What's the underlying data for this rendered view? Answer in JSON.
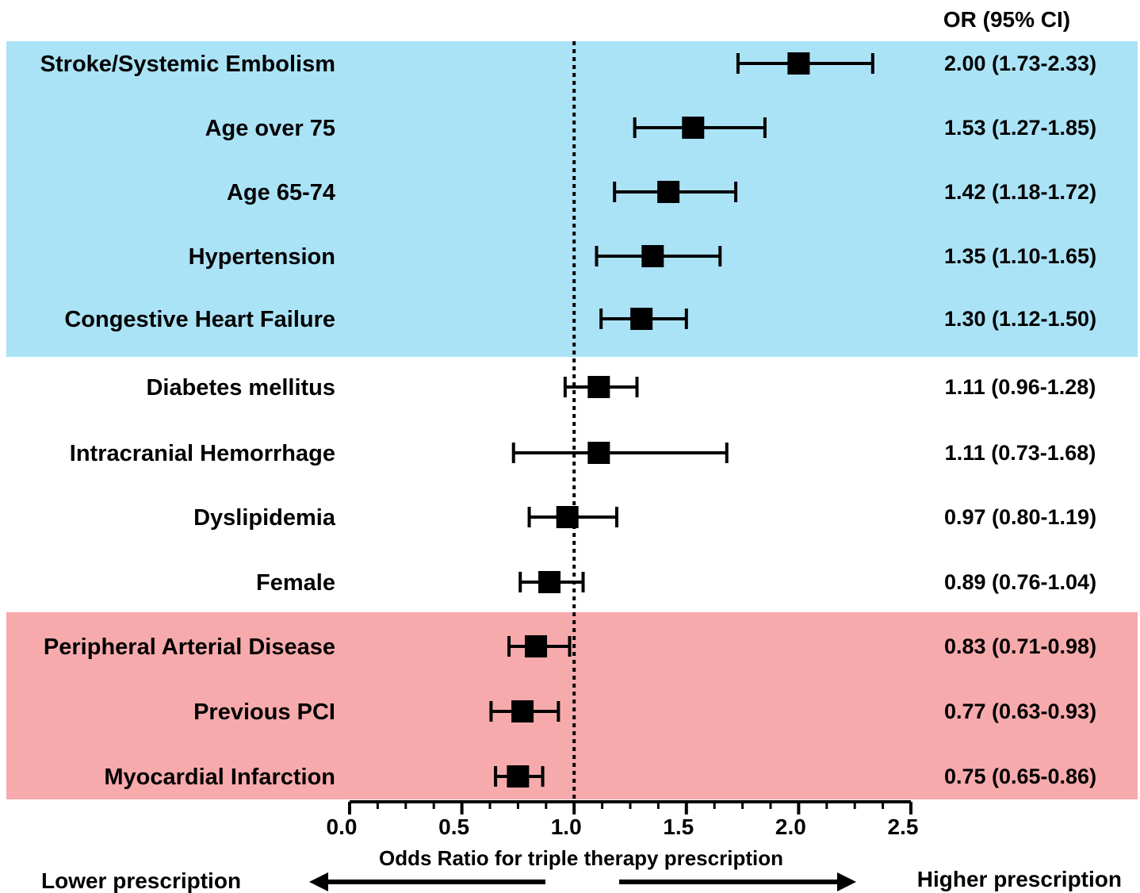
{
  "chart_data": {
    "type": "forest",
    "xlabel": "Odds Ratio for triple therapy prescription",
    "xlim": [
      0,
      2.5
    ],
    "xticks": [
      0.0,
      0.5,
      1.0,
      1.5,
      2.0,
      2.5
    ],
    "xtick_labels": [
      "0.0",
      "0.5",
      "1.0",
      "1.5",
      "2.0",
      "2.5"
    ],
    "reference_line": 1.0,
    "or_column_header": "OR (95%  CI)",
    "left_direction_label": "Lower prescription",
    "right_direction_label": "Higher prescription",
    "rows": [
      {
        "label": "Stroke/Systemic Embolism",
        "or": 2.0,
        "lower": 1.73,
        "upper": 2.33,
        "or_text": "2.00 (1.73-2.33)"
      },
      {
        "label": "Age over 75",
        "or": 1.53,
        "lower": 1.27,
        "upper": 1.85,
        "or_text": "1.53 (1.27-1.85)"
      },
      {
        "label": "Age 65-74",
        "or": 1.42,
        "lower": 1.18,
        "upper": 1.72,
        "or_text": "1.42 (1.18-1.72)"
      },
      {
        "label": "Hypertension",
        "or": 1.35,
        "lower": 1.1,
        "upper": 1.65,
        "or_text": "1.35 (1.10-1.65)"
      },
      {
        "label": "Congestive Heart Failure",
        "or": 1.3,
        "lower": 1.12,
        "upper": 1.5,
        "or_text": "1.30 (1.12-1.50)"
      },
      {
        "label": "Diabetes mellitus",
        "or": 1.11,
        "lower": 0.96,
        "upper": 1.28,
        "or_text": "1.11 (0.96-1.28)"
      },
      {
        "label": "Intracranial Hemorrhage",
        "or": 1.11,
        "lower": 0.73,
        "upper": 1.68,
        "or_text": "1.11 (0.73-1.68)"
      },
      {
        "label": "Dyslipidemia",
        "or": 0.97,
        "lower": 0.8,
        "upper": 1.19,
        "or_text": "0.97 (0.80-1.19)"
      },
      {
        "label": "Female",
        "or": 0.89,
        "lower": 0.76,
        "upper": 1.04,
        "or_text": "0.89 (0.76-1.04)"
      },
      {
        "label": "Peripheral Arterial Disease",
        "or": 0.83,
        "lower": 0.71,
        "upper": 0.98,
        "or_text": "0.83 (0.71-0.98)"
      },
      {
        "label": "Previous PCI",
        "or": 0.77,
        "lower": 0.63,
        "upper": 0.93,
        "or_text": "0.77 (0.63-0.93)"
      },
      {
        "label": "Myocardial Infarction",
        "or": 0.75,
        "lower": 0.65,
        "upper": 0.86,
        "or_text": "0.75 (0.65-0.86)"
      }
    ],
    "highlight_groups": [
      {
        "rows": [
          0,
          4
        ],
        "color": "#abe3f6",
        "meaning": "higher"
      },
      {
        "rows": [
          9,
          11
        ],
        "color": "#f7aaac",
        "meaning": "lower"
      }
    ],
    "marker_color": "#000000"
  }
}
